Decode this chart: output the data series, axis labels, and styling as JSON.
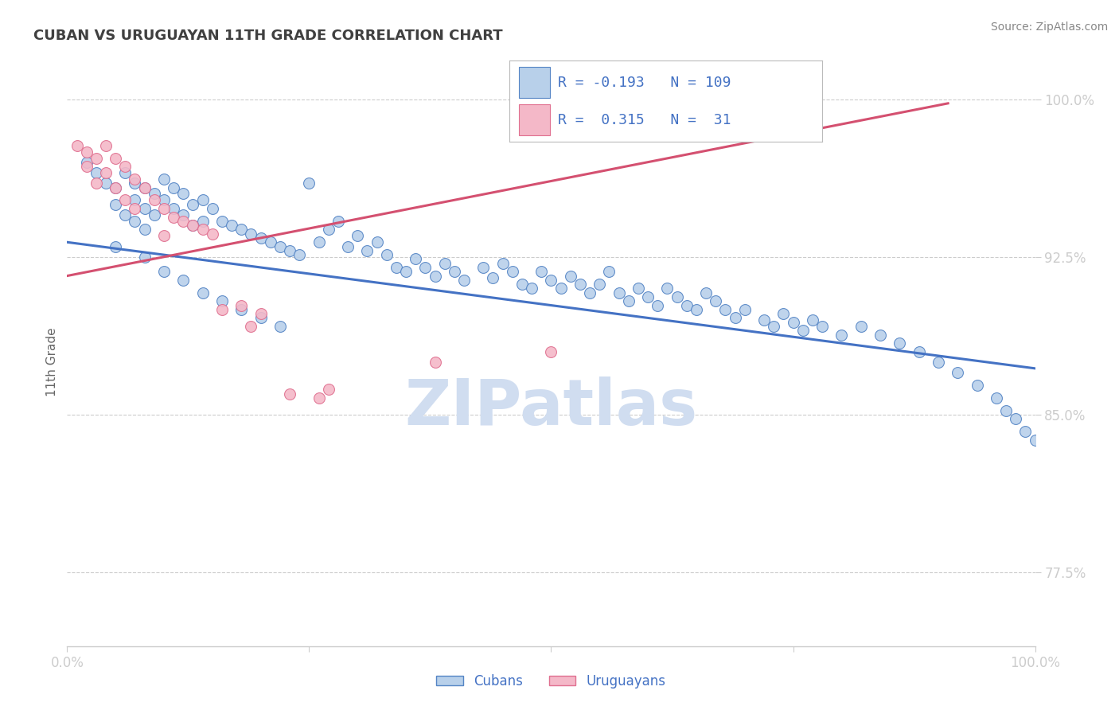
{
  "title": "CUBAN VS URUGUAYAN 11TH GRADE CORRELATION CHART",
  "source_text": "Source: ZipAtlas.com",
  "ylabel": "11th Grade",
  "xlim": [
    0.0,
    1.0
  ],
  "ylim": [
    0.74,
    1.01
  ],
  "yticks": [
    0.775,
    0.85,
    0.925,
    1.0
  ],
  "yticklabels": [
    "77.5%",
    "85.0%",
    "92.5%",
    "100.0%"
  ],
  "blue_fill": "#b8d0ea",
  "blue_edge": "#5585c5",
  "blue_line": "#4472c4",
  "pink_fill": "#f4b8c8",
  "pink_edge": "#e07090",
  "pink_line": "#d45070",
  "text_color": "#4472c4",
  "grid_color": "#cccccc",
  "R_blue": -0.193,
  "N_blue": 109,
  "R_pink": 0.315,
  "N_pink": 31,
  "watermark": "ZIPatlas",
  "watermark_color": "#d0ddf0",
  "blue_trend_x0": 0.0,
  "blue_trend_y0": 0.932,
  "blue_trend_x1": 1.0,
  "blue_trend_y1": 0.872,
  "pink_trend_x0": 0.0,
  "pink_trend_y0": 0.916,
  "pink_trend_x1": 0.91,
  "pink_trend_y1": 0.998,
  "blue_x": [
    0.02,
    0.03,
    0.04,
    0.05,
    0.05,
    0.06,
    0.06,
    0.07,
    0.07,
    0.07,
    0.08,
    0.08,
    0.08,
    0.09,
    0.09,
    0.1,
    0.1,
    0.11,
    0.11,
    0.12,
    0.12,
    0.13,
    0.13,
    0.14,
    0.14,
    0.15,
    0.16,
    0.17,
    0.18,
    0.19,
    0.2,
    0.21,
    0.22,
    0.23,
    0.24,
    0.25,
    0.26,
    0.27,
    0.28,
    0.29,
    0.3,
    0.31,
    0.32,
    0.33,
    0.34,
    0.35,
    0.36,
    0.37,
    0.38,
    0.39,
    0.4,
    0.41,
    0.43,
    0.44,
    0.45,
    0.46,
    0.47,
    0.48,
    0.49,
    0.5,
    0.51,
    0.52,
    0.53,
    0.54,
    0.55,
    0.56,
    0.57,
    0.58,
    0.59,
    0.6,
    0.61,
    0.62,
    0.63,
    0.64,
    0.65,
    0.66,
    0.67,
    0.68,
    0.69,
    0.7,
    0.72,
    0.73,
    0.74,
    0.75,
    0.76,
    0.77,
    0.78,
    0.8,
    0.82,
    0.84,
    0.86,
    0.88,
    0.9,
    0.92,
    0.94,
    0.96,
    0.97,
    0.98,
    0.99,
    1.0,
    0.05,
    0.08,
    0.1,
    0.12,
    0.14,
    0.16,
    0.18,
    0.2,
    0.22
  ],
  "blue_y": [
    0.97,
    0.965,
    0.96,
    0.958,
    0.95,
    0.965,
    0.945,
    0.96,
    0.952,
    0.942,
    0.958,
    0.948,
    0.938,
    0.955,
    0.945,
    0.962,
    0.952,
    0.958,
    0.948,
    0.955,
    0.945,
    0.95,
    0.94,
    0.952,
    0.942,
    0.948,
    0.942,
    0.94,
    0.938,
    0.936,
    0.934,
    0.932,
    0.93,
    0.928,
    0.926,
    0.96,
    0.932,
    0.938,
    0.942,
    0.93,
    0.935,
    0.928,
    0.932,
    0.926,
    0.92,
    0.918,
    0.924,
    0.92,
    0.916,
    0.922,
    0.918,
    0.914,
    0.92,
    0.915,
    0.922,
    0.918,
    0.912,
    0.91,
    0.918,
    0.914,
    0.91,
    0.916,
    0.912,
    0.908,
    0.912,
    0.918,
    0.908,
    0.904,
    0.91,
    0.906,
    0.902,
    0.91,
    0.906,
    0.902,
    0.9,
    0.908,
    0.904,
    0.9,
    0.896,
    0.9,
    0.895,
    0.892,
    0.898,
    0.894,
    0.89,
    0.895,
    0.892,
    0.888,
    0.892,
    0.888,
    0.884,
    0.88,
    0.875,
    0.87,
    0.864,
    0.858,
    0.852,
    0.848,
    0.842,
    0.838,
    0.93,
    0.925,
    0.918,
    0.914,
    0.908,
    0.904,
    0.9,
    0.896,
    0.892
  ],
  "pink_x": [
    0.01,
    0.02,
    0.02,
    0.03,
    0.03,
    0.04,
    0.04,
    0.05,
    0.05,
    0.06,
    0.06,
    0.07,
    0.07,
    0.08,
    0.09,
    0.1,
    0.11,
    0.12,
    0.13,
    0.14,
    0.15,
    0.16,
    0.18,
    0.2,
    0.23,
    0.26,
    0.1,
    0.19,
    0.27,
    0.38,
    0.5
  ],
  "pink_y": [
    0.978,
    0.975,
    0.968,
    0.972,
    0.96,
    0.978,
    0.965,
    0.972,
    0.958,
    0.968,
    0.952,
    0.962,
    0.948,
    0.958,
    0.952,
    0.948,
    0.944,
    0.942,
    0.94,
    0.938,
    0.936,
    0.9,
    0.902,
    0.898,
    0.86,
    0.858,
    0.935,
    0.892,
    0.862,
    0.875,
    0.88
  ]
}
